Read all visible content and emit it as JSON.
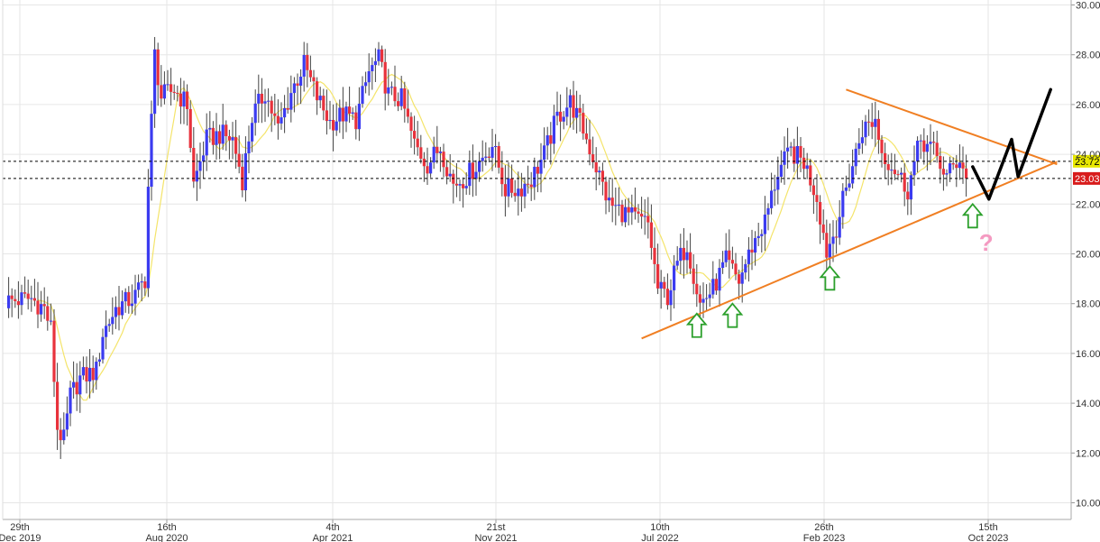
{
  "chart_data": {
    "type": "candlestick",
    "title": "",
    "xlabel": "",
    "ylabel": "",
    "ylim": [
      9.4,
      30.2
    ],
    "grid": true,
    "y_ticks": [
      "10.00",
      "12.00",
      "14.00",
      "16.00",
      "18.00",
      "20.00",
      "22.00",
      "24.00",
      "26.00",
      "28.00",
      "30.00"
    ],
    "x_ticks": [
      {
        "day": "29th",
        "month": "Dec 2019"
      },
      {
        "day": "16th",
        "month": "Aug 2020"
      },
      {
        "day": "4th",
        "month": "Apr 2021"
      },
      {
        "day": "21st",
        "month": "Nov 2021"
      },
      {
        "day": "10th",
        "month": "Jul 2022"
      },
      {
        "day": "26th",
        "month": "Feb 2023"
      },
      {
        "day": "15th",
        "month": "Oct 2023"
      }
    ],
    "price_markers": [
      {
        "label": "23.72",
        "value": 23.72,
        "color": "#e8e800",
        "text_color": "#000000"
      },
      {
        "label": "23.03",
        "value": 23.03,
        "color": "#d81b1b",
        "text_color": "#ffffff"
      }
    ],
    "series": [
      {
        "name": "candles",
        "up_color": "#3b3bf0",
        "down_color": "#e8323c"
      },
      {
        "name": "moving_average",
        "color": "#f4e46a"
      }
    ],
    "annotations": {
      "triangle_color": "#f07f23",
      "upper_line": [
        {
          "week": 259,
          "value": 26.6
        },
        {
          "week": 324,
          "value": 23.6
        }
      ],
      "lower_line": [
        {
          "week": 196,
          "value": 16.6
        },
        {
          "week": 324,
          "value": 23.7
        }
      ],
      "forecast_color": "#000000",
      "forecast_path": [
        {
          "week": 298,
          "value": 23.5
        },
        {
          "week": 303,
          "value": 22.2
        },
        {
          "week": 310,
          "value": 24.6
        },
        {
          "week": 312,
          "value": 23.1
        },
        {
          "week": 322,
          "value": 26.6
        }
      ],
      "up_arrows": [
        {
          "week": 213,
          "value": 17.6
        },
        {
          "week": 224,
          "value": 18.0
        },
        {
          "week": 254,
          "value": 19.5
        },
        {
          "week": 298,
          "value": 22.0
        }
      ],
      "up_arrow_color": "#2ca02c",
      "question_mark": {
        "text": "?",
        "week": 303,
        "value": 20.7,
        "color": "#f49ac1"
      }
    }
  }
}
